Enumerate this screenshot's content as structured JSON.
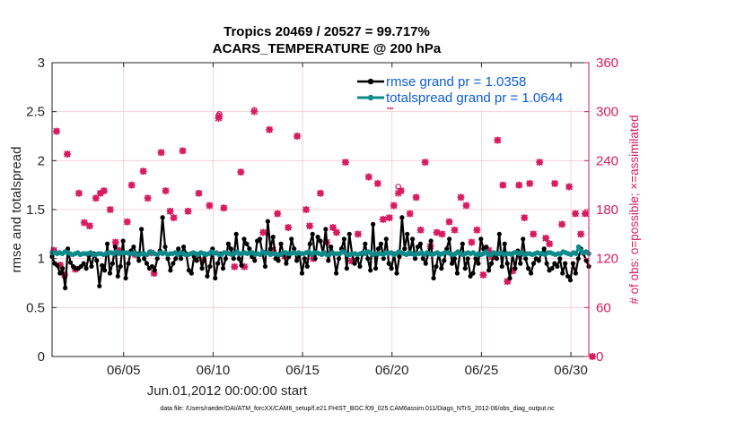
{
  "chart_data": {
    "type": "line",
    "title": "Tropics 20469 / 20527 = 99.717%",
    "subtitle": "ACARS_TEMPERATURE @ 200 hPa",
    "xlabel": "Jun.01,2012 00:00:00 start",
    "ylabel": "rmse and totalspread",
    "ylabel_right": "# of obs: o=possible; ×=assimilated",
    "footnote": "data file: /Users/raeder/DAI/ATM_forcXX/CAM6_setup/f.e21.FHIST_BGC.f09_025.CAM6assim.011/Diags_NTrS_2012-06/obs_diag_output.nc",
    "x_range_days": [
      1,
      31
    ],
    "ylim": [
      0,
      3
    ],
    "ylim_right": [
      0,
      360
    ],
    "x_ticks": [
      {
        "day": 5,
        "label": "06/05"
      },
      {
        "day": 10,
        "label": "06/10"
      },
      {
        "day": 15,
        "label": "06/15"
      },
      {
        "day": 20,
        "label": "06/20"
      },
      {
        "day": 25,
        "label": "06/25"
      },
      {
        "day": 30,
        "label": "06/30"
      }
    ],
    "y_ticks": [
      "0",
      "0.5",
      "1",
      "1.5",
      "2",
      "2.5",
      "3"
    ],
    "y_ticks_right": [
      "0",
      "60",
      "120",
      "180",
      "240",
      "300",
      "360"
    ],
    "grid": true,
    "legend_position": "top-right",
    "colors": {
      "rmse": "#000000",
      "spread": "#0e8a8a",
      "obs": "#d81b60",
      "legend_text": "#0b5ed7"
    },
    "series": [
      {
        "name": "rmse grand pr = 1.0358",
        "axis": "left",
        "values": [
          1.02,
          0.95,
          0.93,
          0.85,
          0.9,
          0.7,
          1.1,
          0.96,
          0.92,
          0.9,
          0.9,
          0.92,
          0.95,
          0.9,
          1.03,
          0.92,
          1.05,
          0.98,
          0.72,
          0.93,
          0.88,
          1.15,
          0.85,
          0.95,
          1.12,
          0.82,
          0.92,
          1.18,
          0.8,
          0.95,
          1.08,
          1.12,
          1.05,
          0.98,
          1.3,
          1.0,
          0.95,
          0.9,
          0.92,
          0.88,
          1.0,
          1.08,
          1.42,
          1.12,
          1.0,
          0.88,
          0.95,
          1.0,
          1.1,
          1.0,
          1.12,
          1.05,
          0.88,
          0.85,
          1.02,
          0.98,
          1.05,
          0.9,
          1.05,
          0.82,
          0.92,
          1.1,
          0.8,
          0.95,
          1.05,
          0.9,
          1.0,
          1.15,
          1.1,
          1.0,
          1.25,
          1.0,
          0.93,
          1.2,
          1.15,
          1.1,
          1.02,
          0.98,
          1.18,
          1.2,
          1.05,
          0.92,
          1.38,
          1.1,
          1.22,
          1.0,
          0.98,
          1.15,
          1.05,
          0.95,
          1.02,
          1.2,
          1.1,
          0.98,
          1.05,
          0.85,
          1.0,
          0.92,
          1.15,
          1.25,
          1.0,
          1.22,
          1.18,
          1.05,
          1.3,
          0.98,
          1.12,
          1.05,
          0.85,
          1.0,
          1.1,
          1.2,
          0.9,
          1.25,
          1.05,
          0.95,
          1.0,
          0.92,
          1.05,
          1.15,
          1.0,
          0.88,
          1.35,
          0.9,
          1.1,
          1.15,
          1.0,
          1.2,
          0.95,
          0.9,
          1.05,
          0.85,
          1.02,
          1.42,
          1.1,
          1.25,
          1.05,
          1.2,
          1.0,
          1.12,
          1.15,
          1.0,
          0.95,
          1.05,
          1.18,
          0.8,
          0.92,
          1.05,
          0.9,
          0.98,
          1.1,
          1.2,
          0.95,
          1.0,
          0.85,
          1.05,
          1.15,
          0.9,
          1.0,
          0.82,
          0.85,
          1.0,
          0.95,
          1.2,
          1.1,
          1.12,
          0.88,
          0.95,
          1.05,
          1.0,
          1.25,
          0.92,
          1.15,
          0.95,
          0.8,
          1.05,
          0.9,
          1.08,
          0.95,
          1.2,
          1.0,
          0.9,
          0.85,
          0.95,
          1.0,
          0.98,
          1.05,
          1.1,
          0.95,
          0.88,
          0.9,
          0.95,
          0.92,
          1.0,
          0.85,
          0.95,
          0.82,
          0.78,
          0.95,
          0.85,
          1.0,
          1.1,
          1.05,
          0.98,
          0.92
        ]
      },
      {
        "name": "totalspread grand pr = 1.0644",
        "axis": "left",
        "values": [
          1.06,
          1.06,
          1.05,
          1.06,
          1.05,
          1.07,
          1.06,
          1.05,
          1.04,
          1.05,
          1.06,
          1.04,
          1.05,
          1.05,
          1.05,
          1.06,
          1.04,
          1.04,
          1.05,
          1.05,
          1.04,
          1.05,
          1.06,
          1.06,
          1.05,
          1.07,
          1.05,
          1.06,
          1.06,
          1.06,
          1.05,
          1.05,
          1.06,
          1.04,
          1.04,
          1.05,
          1.05,
          1.04,
          1.07,
          1.06,
          1.05,
          1.04,
          1.06,
          1.05,
          1.06,
          1.04,
          1.05,
          1.05,
          1.06,
          1.04,
          1.06,
          1.05,
          1.04,
          1.04,
          1.05,
          1.06,
          1.05,
          1.04,
          1.06,
          1.05,
          1.04,
          1.05,
          1.07,
          1.05,
          1.06,
          1.04,
          1.04,
          1.06,
          1.06,
          1.05,
          1.04,
          1.05,
          1.07,
          1.05,
          1.05,
          1.06,
          1.05,
          1.06,
          1.06,
          1.04,
          1.05,
          1.04,
          1.07,
          1.05,
          1.06,
          1.04,
          1.05,
          1.05,
          1.04,
          1.04,
          1.06,
          1.06,
          1.05,
          1.05,
          1.06,
          1.05,
          1.06,
          1.05,
          1.05,
          1.06,
          1.07,
          1.04,
          1.06,
          1.06,
          1.05,
          1.04,
          1.06,
          1.04,
          1.04,
          1.06,
          1.05,
          1.05,
          1.05,
          1.07,
          1.06,
          1.04,
          1.04,
          1.05,
          1.05,
          1.04,
          1.05,
          1.06,
          1.05,
          1.07,
          1.06,
          1.04,
          1.05,
          1.05,
          1.05,
          1.04,
          1.06,
          1.05,
          1.06,
          1.04,
          1.05,
          1.07,
          1.06,
          1.05,
          1.04,
          1.06,
          1.05,
          1.04,
          1.05,
          1.05,
          1.06,
          1.04,
          1.06,
          1.05,
          1.04,
          1.05,
          1.06,
          1.04,
          1.05,
          1.06,
          1.06,
          1.05,
          1.04,
          1.05,
          1.07,
          1.05,
          1.04,
          1.05,
          1.06,
          1.05,
          1.06,
          1.04,
          1.05,
          1.04,
          1.05,
          1.07,
          1.04,
          1.04,
          1.06,
          1.05,
          1.05,
          1.06,
          1.04,
          1.05,
          1.05,
          1.04,
          1.06,
          1.06,
          1.05,
          1.06,
          1.04,
          1.05,
          1.05,
          1.04,
          1.05,
          1.06,
          1.05,
          1.05,
          1.04,
          1.06,
          1.06,
          1.05,
          1.04,
          1.05,
          1.05,
          1.07,
          1.06,
          1.05,
          1.04,
          1.06,
          1.05,
          1.12,
          1.08,
          1.06,
          1.07,
          1.05
        ]
      },
      {
        "name": "obs possible",
        "axis": "right",
        "marker": "o",
        "points": [
          [
            1.1,
            130
          ],
          [
            1.25,
            276
          ],
          [
            1.45,
            112
          ],
          [
            1.7,
            100
          ],
          [
            1.85,
            248
          ],
          [
            2.3,
            107
          ],
          [
            2.5,
            200
          ],
          [
            2.8,
            164
          ],
          [
            3.1,
            160
          ],
          [
            3.45,
            194
          ],
          [
            3.7,
            200
          ],
          [
            3.9,
            203
          ],
          [
            4.25,
            180
          ],
          [
            4.55,
            140
          ],
          [
            4.75,
            130
          ],
          [
            5.2,
            165
          ],
          [
            5.45,
            210
          ],
          [
            5.65,
            125
          ],
          [
            6.1,
            227
          ],
          [
            6.35,
            194
          ],
          [
            6.55,
            127
          ],
          [
            6.7,
            102
          ],
          [
            7.1,
            250
          ],
          [
            7.35,
            203
          ],
          [
            7.6,
            178
          ],
          [
            7.8,
            170
          ],
          [
            8.3,
            252
          ],
          [
            8.6,
            178
          ],
          [
            9.2,
            200
          ],
          [
            9.45,
            118
          ],
          [
            9.8,
            185
          ],
          [
            10.3,
            295
          ],
          [
            10.35,
            297
          ],
          [
            10.6,
            182
          ],
          [
            11.2,
            110
          ],
          [
            11.55,
            226
          ],
          [
            11.75,
            110
          ],
          [
            12.3,
            302
          ],
          [
            12.8,
            152
          ],
          [
            13.15,
            278
          ],
          [
            13.35,
            130
          ],
          [
            13.6,
            175
          ],
          [
            14.0,
            123
          ],
          [
            14.2,
            158
          ],
          [
            14.7,
            270
          ],
          [
            15.2,
            180
          ],
          [
            15.4,
            160
          ],
          [
            15.6,
            120
          ],
          [
            16.0,
            200
          ],
          [
            16.35,
            140
          ],
          [
            16.7,
            158
          ],
          [
            16.9,
            152
          ],
          [
            17.4,
            238
          ],
          [
            17.75,
            117
          ],
          [
            18.1,
            150
          ],
          [
            18.7,
            220
          ],
          [
            19.2,
            212
          ],
          [
            19.5,
            168
          ],
          [
            19.85,
            170
          ],
          [
            19.9,
            310
          ],
          [
            20.1,
            185
          ],
          [
            20.35,
            208
          ],
          [
            20.5,
            203
          ],
          [
            20.75,
            325
          ],
          [
            21.0,
            175
          ],
          [
            21.35,
            195
          ],
          [
            21.6,
            155
          ],
          [
            21.85,
            238
          ],
          [
            22.15,
            135
          ],
          [
            22.5,
            152
          ],
          [
            22.8,
            150
          ],
          [
            23.2,
            165
          ],
          [
            23.5,
            155
          ],
          [
            23.85,
            195
          ],
          [
            24.15,
            185
          ],
          [
            24.45,
            140
          ],
          [
            24.75,
            155
          ],
          [
            25.1,
            100
          ],
          [
            25.4,
            130
          ],
          [
            25.6,
            122
          ],
          [
            25.9,
            265
          ],
          [
            26.2,
            210
          ],
          [
            26.45,
            92
          ],
          [
            26.75,
            105
          ],
          [
            27.1,
            210
          ],
          [
            27.4,
            170
          ],
          [
            27.7,
            212
          ],
          [
            27.9,
            150
          ],
          [
            28.25,
            238
          ],
          [
            28.6,
            145
          ],
          [
            28.8,
            138
          ],
          [
            29.1,
            212
          ],
          [
            29.5,
            162
          ],
          [
            29.9,
            208
          ],
          [
            30.25,
            175
          ],
          [
            30.55,
            150
          ],
          [
            30.8,
            175
          ],
          [
            31.2,
            0
          ]
        ]
      },
      {
        "name": "obs assimilated",
        "axis": "right",
        "marker": "x",
        "points": [
          [
            1.1,
            130
          ],
          [
            1.25,
            276
          ],
          [
            1.45,
            112
          ],
          [
            1.7,
            100
          ],
          [
            1.85,
            248
          ],
          [
            2.3,
            107
          ],
          [
            2.5,
            200
          ],
          [
            2.8,
            164
          ],
          [
            3.1,
            160
          ],
          [
            3.45,
            194
          ],
          [
            3.7,
            200
          ],
          [
            3.9,
            203
          ],
          [
            4.25,
            180
          ],
          [
            4.55,
            140
          ],
          [
            4.75,
            130
          ],
          [
            5.2,
            165
          ],
          [
            5.45,
            210
          ],
          [
            5.65,
            125
          ],
          [
            6.1,
            227
          ],
          [
            6.35,
            194
          ],
          [
            6.55,
            127
          ],
          [
            6.7,
            102
          ],
          [
            7.1,
            250
          ],
          [
            7.35,
            203
          ],
          [
            7.6,
            178
          ],
          [
            7.8,
            170
          ],
          [
            8.3,
            252
          ],
          [
            8.6,
            178
          ],
          [
            9.2,
            200
          ],
          [
            9.45,
            118
          ],
          [
            9.8,
            185
          ],
          [
            10.3,
            292
          ],
          [
            10.35,
            294
          ],
          [
            10.6,
            182
          ],
          [
            11.2,
            110
          ],
          [
            11.55,
            226
          ],
          [
            11.75,
            110
          ],
          [
            12.3,
            300
          ],
          [
            12.8,
            152
          ],
          [
            13.15,
            278
          ],
          [
            13.35,
            130
          ],
          [
            13.6,
            175
          ],
          [
            14.0,
            123
          ],
          [
            14.2,
            158
          ],
          [
            14.7,
            270
          ],
          [
            15.2,
            180
          ],
          [
            15.4,
            160
          ],
          [
            15.6,
            120
          ],
          [
            16.0,
            200
          ],
          [
            16.35,
            140
          ],
          [
            16.7,
            158
          ],
          [
            16.9,
            152
          ],
          [
            17.4,
            238
          ],
          [
            17.75,
            117
          ],
          [
            18.1,
            150
          ],
          [
            18.7,
            220
          ],
          [
            19.2,
            212
          ],
          [
            19.5,
            168
          ],
          [
            19.85,
            170
          ],
          [
            19.9,
            307
          ],
          [
            20.1,
            185
          ],
          [
            20.35,
            200
          ],
          [
            20.5,
            203
          ],
          [
            20.75,
            325
          ],
          [
            21.0,
            175
          ],
          [
            21.35,
            195
          ],
          [
            21.6,
            155
          ],
          [
            21.85,
            238
          ],
          [
            22.15,
            135
          ],
          [
            22.5,
            152
          ],
          [
            22.8,
            150
          ],
          [
            23.2,
            165
          ],
          [
            23.5,
            155
          ],
          [
            23.85,
            195
          ],
          [
            24.15,
            185
          ],
          [
            24.45,
            140
          ],
          [
            24.75,
            155
          ],
          [
            25.1,
            100
          ],
          [
            25.4,
            130
          ],
          [
            25.6,
            122
          ],
          [
            25.9,
            265
          ],
          [
            26.2,
            210
          ],
          [
            26.45,
            92
          ],
          [
            26.75,
            105
          ],
          [
            27.1,
            210
          ],
          [
            27.4,
            170
          ],
          [
            27.7,
            212
          ],
          [
            27.9,
            150
          ],
          [
            28.25,
            238
          ],
          [
            28.6,
            145
          ],
          [
            28.8,
            138
          ],
          [
            29.1,
            212
          ],
          [
            29.5,
            162
          ],
          [
            29.9,
            208
          ],
          [
            30.25,
            175
          ],
          [
            30.55,
            150
          ],
          [
            30.8,
            175
          ],
          [
            31.2,
            0
          ]
        ]
      }
    ]
  }
}
